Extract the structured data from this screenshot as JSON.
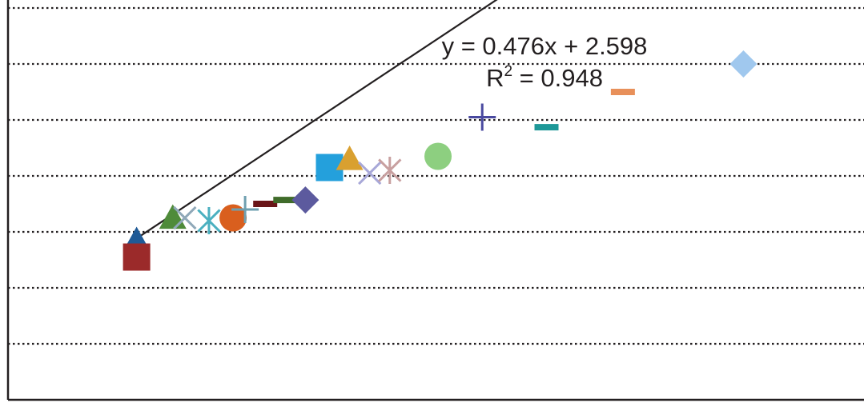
{
  "chart_data": {
    "type": "scatter",
    "trendline": {
      "type": "linear",
      "slope": 0.476,
      "intercept": 2.598,
      "equation_label": "y = 0.476x + 2.598",
      "r2_prefix": "R",
      "r2_exponent": "2",
      "r2_value": " = 0.948",
      "x_range": [
        0.6,
        15.5
      ]
    },
    "grid": true,
    "points": [
      {
        "x": 0.6,
        "y": 2.85,
        "marker": "triangle",
        "color": "#1f5a96"
      },
      {
        "x": 0.6,
        "y": 2.55,
        "marker": "square",
        "color": "#9b2a2a"
      },
      {
        "x": 1.5,
        "y": 3.25,
        "marker": "triangle",
        "color": "#4f8b3a"
      },
      {
        "x": 1.8,
        "y": 3.25,
        "marker": "x",
        "color": "#8fa8b8"
      },
      {
        "x": 2.4,
        "y": 3.2,
        "marker": "asterisk",
        "color": "#4bb0c0"
      },
      {
        "x": 3.0,
        "y": 3.25,
        "marker": "circle",
        "color": "#d95f1e"
      },
      {
        "x": 3.3,
        "y": 3.4,
        "marker": "plus",
        "color": "#6fa0b0"
      },
      {
        "x": 3.8,
        "y": 3.5,
        "marker": "dash",
        "color": "#6a1518"
      },
      {
        "x": 4.3,
        "y": 3.57,
        "marker": "dash",
        "color": "#3f6b2a"
      },
      {
        "x": 4.8,
        "y": 3.57,
        "marker": "diamond",
        "color": "#5c5a9e"
      },
      {
        "x": 5.4,
        "y": 4.15,
        "marker": "square",
        "color": "#24a0dc"
      },
      {
        "x": 5.9,
        "y": 4.3,
        "marker": "triangle",
        "color": "#d9a030"
      },
      {
        "x": 6.4,
        "y": 4.05,
        "marker": "x",
        "color": "#a8a8d8"
      },
      {
        "x": 6.9,
        "y": 4.1,
        "marker": "asterisk",
        "color": "#c8a0a0"
      },
      {
        "x": 8.1,
        "y": 4.35,
        "marker": "circle",
        "color": "#8dcf80"
      },
      {
        "x": 9.2,
        "y": 5.05,
        "marker": "plus",
        "color": "#4a4aa0"
      },
      {
        "x": 10.8,
        "y": 4.87,
        "marker": "dash",
        "color": "#1e9898"
      },
      {
        "x": 12.7,
        "y": 5.5,
        "marker": "dash",
        "color": "#e8905a"
      },
      {
        "x": 15.7,
        "y": 6.0,
        "marker": "diamond",
        "color": "#a0c8ee"
      }
    ],
    "xlim": [
      -2.6,
      18.7
    ],
    "ylim": [
      0,
      7
    ],
    "title": "",
    "xlabel": "",
    "ylabel": ""
  }
}
